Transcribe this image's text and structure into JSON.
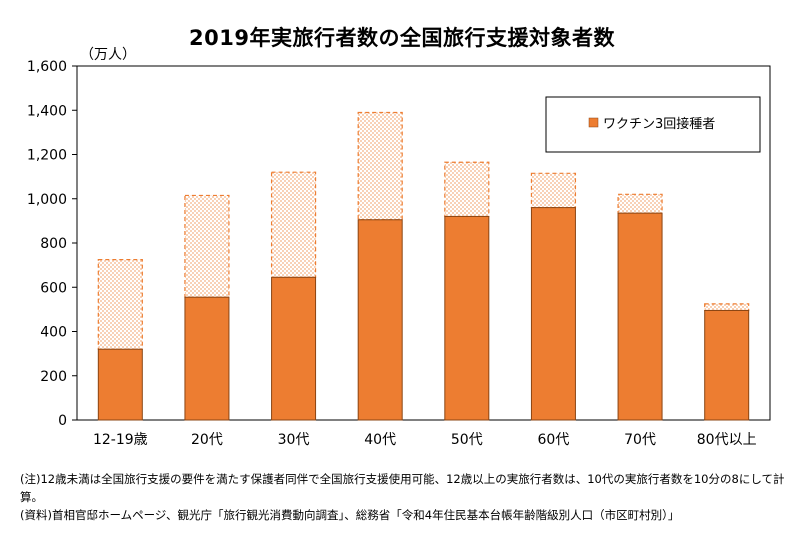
{
  "title": "2019年実旅行者数の全国旅行支援対象者数",
  "unit_label": "（万人）",
  "colors": {
    "bar": "#ED7D31",
    "bar_stroke": "#8B4513",
    "hatch": "#F4B183",
    "axis": "#000000"
  },
  "chart_data": {
    "type": "bar",
    "categories": [
      "12-19歳",
      "20代",
      "30代",
      "40代",
      "50代",
      "60代",
      "70代",
      "80代以上"
    ],
    "series": [
      {
        "name": "ワクチン3回接種者",
        "values": [
          320,
          555,
          645,
          905,
          920,
          960,
          935,
          495
        ]
      },
      {
        "values": [
          405,
          460,
          475,
          485,
          245,
          155,
          85,
          30
        ]
      }
    ],
    "totals": [
      725,
      1015,
      1120,
      1390,
      1165,
      1115,
      1020,
      525
    ],
    "ylim": [
      0,
      1600
    ],
    "yticks": [
      "0",
      "200",
      "400",
      "600",
      "800",
      "1,000",
      "1,200",
      "1,400",
      "1,600"
    ],
    "ytick_values": [
      0,
      200,
      400,
      600,
      800,
      1000,
      1200,
      1400,
      1600
    ],
    "legend_position": "top-right",
    "grid": false
  },
  "notes": {
    "line1": "(注)12歳未満は全国旅行支援の要件を満たす保護者同伴で全国旅行支援使用可能、12歳以上の実旅行者数は、10代の実旅行者数を10分の8にして計算。",
    "line2": "(資料)首相官邸ホームページ、観光庁「旅行観光消費動向調査」、総務省「令和4年住民基本台帳年齢階級別人口（市区町村別）」"
  }
}
